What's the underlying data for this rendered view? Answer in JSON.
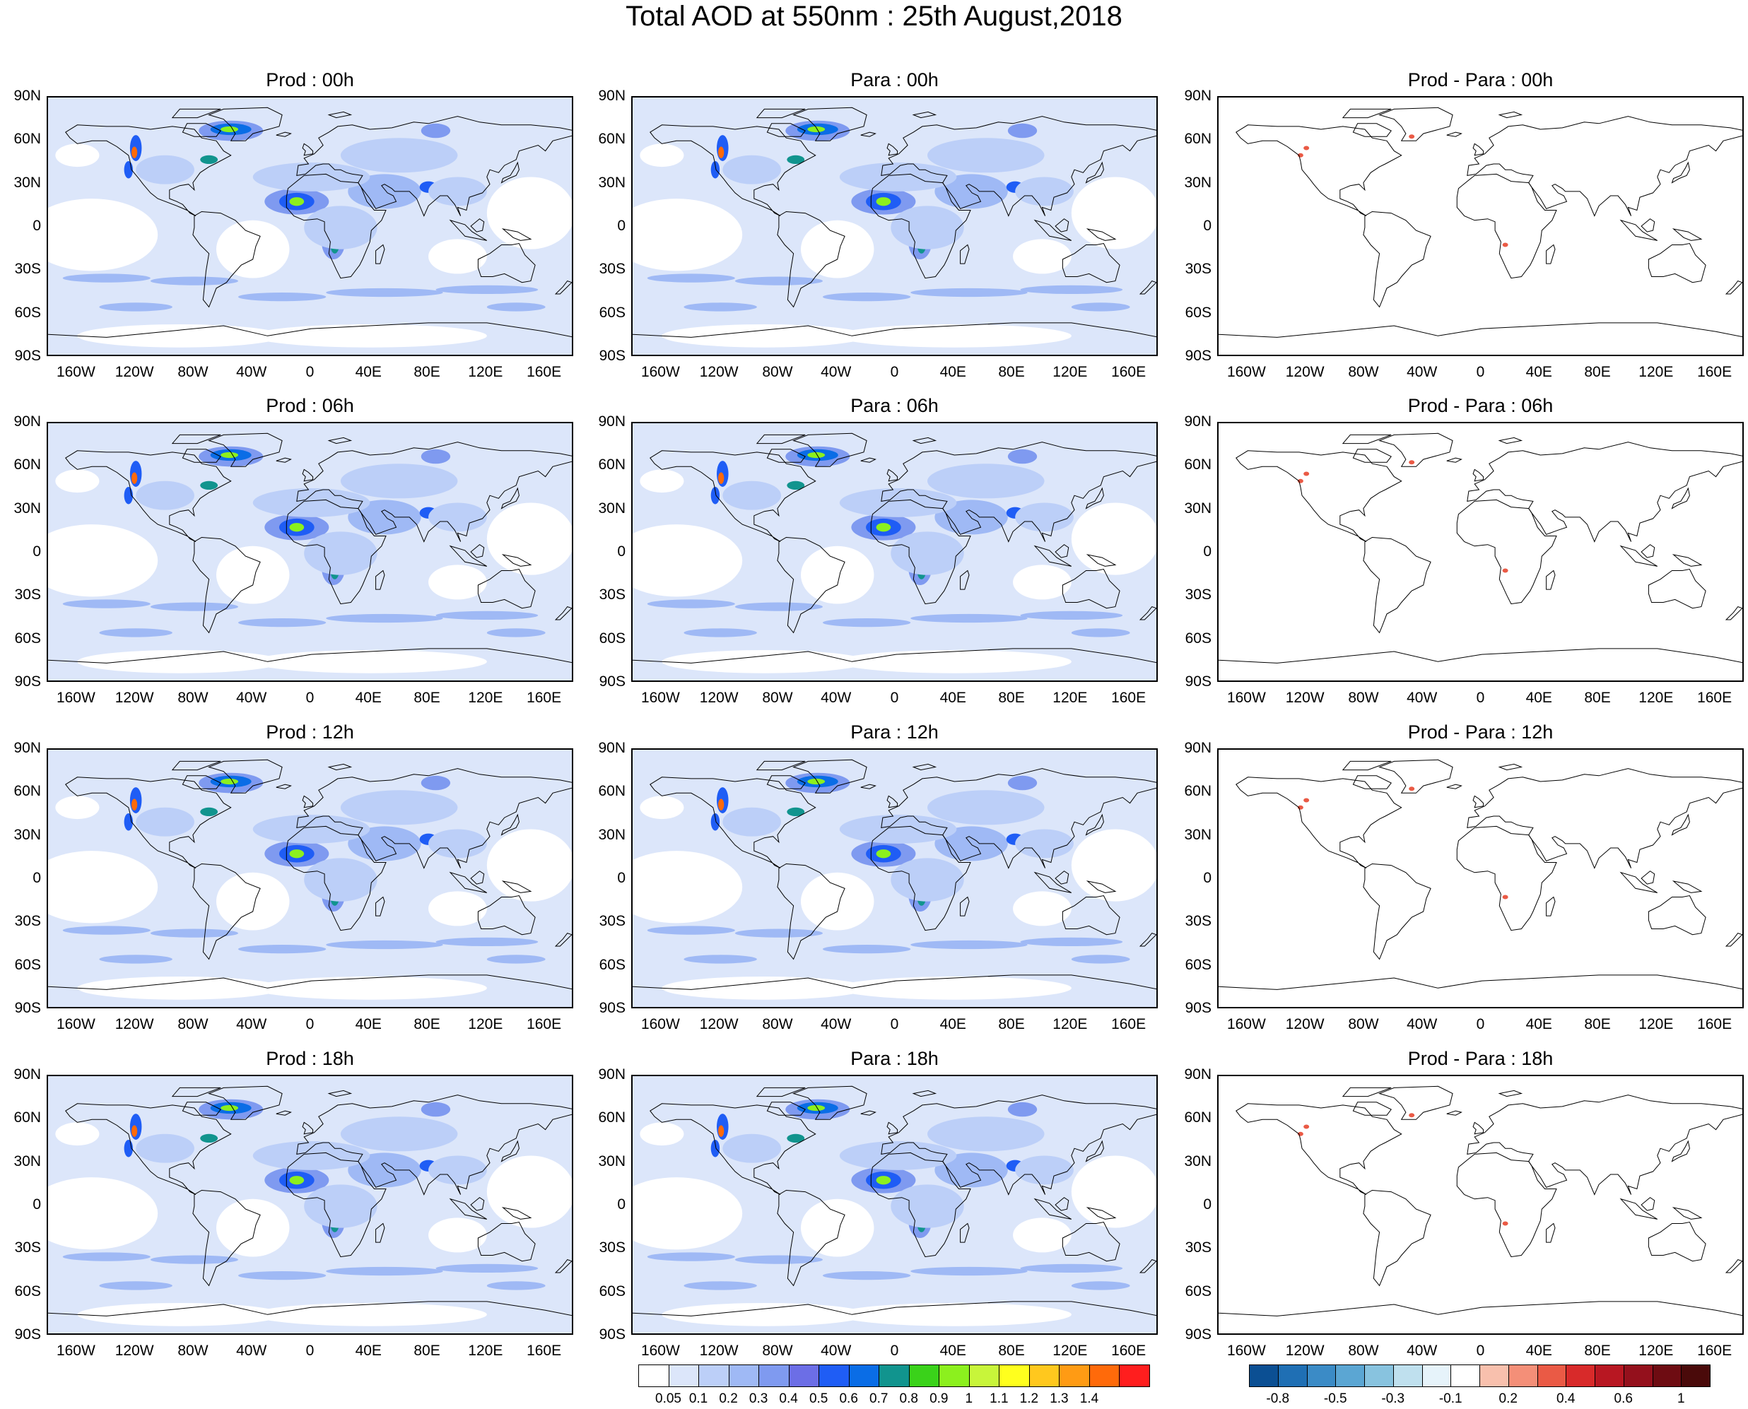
{
  "figure": {
    "title": "Total AOD at 550nm : 25th August,2018"
  },
  "panels": [
    {
      "title": "Prod : 00h",
      "kind": "aod"
    },
    {
      "title": "Para : 00h",
      "kind": "aod"
    },
    {
      "title": "Prod - Para : 00h",
      "kind": "diff"
    },
    {
      "title": "Prod : 06h",
      "kind": "aod"
    },
    {
      "title": "Para : 06h",
      "kind": "aod"
    },
    {
      "title": "Prod - Para : 06h",
      "kind": "diff"
    },
    {
      "title": "Prod : 12h",
      "kind": "aod"
    },
    {
      "title": "Para : 12h",
      "kind": "aod"
    },
    {
      "title": "Prod - Para : 12h",
      "kind": "diff"
    },
    {
      "title": "Prod : 18h",
      "kind": "aod"
    },
    {
      "title": "Para : 18h",
      "kind": "aod"
    },
    {
      "title": "Prod - Para : 18h",
      "kind": "diff"
    }
  ],
  "axes": {
    "lat_ticks": [
      "90N",
      "60N",
      "30N",
      "0",
      "30S",
      "60S",
      "90S"
    ],
    "lon_ticks": [
      "160W",
      "120W",
      "80W",
      "40W",
      "0",
      "40E",
      "80E",
      "120E",
      "160E"
    ]
  },
  "colorbars": {
    "aod": {
      "labels": [
        "0.05",
        "0.1",
        "0.2",
        "0.3",
        "0.4",
        "0.5",
        "0.6",
        "0.7",
        "0.8",
        "0.9",
        "1",
        "1.1",
        "1.2",
        "1.3",
        "1.4"
      ],
      "colors": [
        "#ffffff",
        "#dce6fa",
        "#bccff8",
        "#9fb9f5",
        "#7f9af0",
        "#6c6ee6",
        "#1f5df5",
        "#0a6de6",
        "#11948e",
        "#3ad21a",
        "#8cf01e",
        "#c8f53a",
        "#ffff1e",
        "#ffc81e",
        "#ff9b14",
        "#ff6a0a",
        "#ff1e1e"
      ]
    },
    "diff": {
      "labels": [
        "-0.8",
        "-0.5",
        "-0.3",
        "-0.1",
        "0.2",
        "0.4",
        "0.6",
        "1"
      ],
      "colors": [
        "#0b4f93",
        "#1f6fb4",
        "#3b8bc6",
        "#5ba6d3",
        "#88c3df",
        "#bfe0ee",
        "#e6f3fa",
        "#ffffff",
        "#f8c0ad",
        "#f48f78",
        "#ea5a45",
        "#d82a2a",
        "#b81722",
        "#94101c",
        "#6e0c12",
        "#4a0a0a"
      ]
    }
  },
  "colors": {
    "background": "#ffffff",
    "aod_light": "#dce6fa",
    "aod_medium": "#9fb9f5",
    "aod_hot": "#ff1e1e",
    "diff_positive": "#ea5a45"
  }
}
